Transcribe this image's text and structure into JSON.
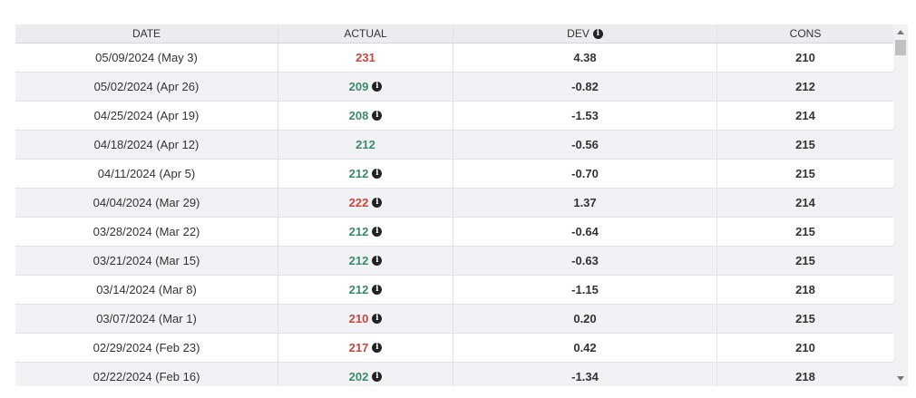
{
  "table": {
    "headers": [
      "DATE",
      "ACTUAL",
      "DEV",
      "CONS"
    ],
    "rows": [
      {
        "date": "05/09/2024 (May 3)",
        "actual": "231",
        "actual_color": "#c9463d",
        "info": false,
        "dev": "4.38",
        "cons": "210"
      },
      {
        "date": "05/02/2024 (Apr 26)",
        "actual": "209",
        "actual_color": "#3d8a6b",
        "info": true,
        "dev": "-0.82",
        "cons": "212"
      },
      {
        "date": "04/25/2024 (Apr 19)",
        "actual": "208",
        "actual_color": "#3d8a6b",
        "info": true,
        "dev": "-1.53",
        "cons": "214"
      },
      {
        "date": "04/18/2024 (Apr 12)",
        "actual": "212",
        "actual_color": "#3d8a6b",
        "info": false,
        "dev": "-0.56",
        "cons": "215"
      },
      {
        "date": "04/11/2024 (Apr 5)",
        "actual": "212",
        "actual_color": "#3d8a6b",
        "info": true,
        "dev": "-0.70",
        "cons": "215"
      },
      {
        "date": "04/04/2024 (Mar 29)",
        "actual": "222",
        "actual_color": "#c9463d",
        "info": true,
        "dev": "1.37",
        "cons": "214"
      },
      {
        "date": "03/28/2024 (Mar 22)",
        "actual": "212",
        "actual_color": "#3d8a6b",
        "info": true,
        "dev": "-0.64",
        "cons": "215"
      },
      {
        "date": "03/21/2024 (Mar 15)",
        "actual": "212",
        "actual_color": "#3d8a6b",
        "info": true,
        "dev": "-0.63",
        "cons": "215"
      },
      {
        "date": "03/14/2024 (Mar 8)",
        "actual": "212",
        "actual_color": "#3d8a6b",
        "info": true,
        "dev": "-1.15",
        "cons": "218"
      },
      {
        "date": "03/07/2024 (Mar 1)",
        "actual": "210",
        "actual_color": "#c9463d",
        "info": true,
        "dev": "0.20",
        "cons": "215"
      },
      {
        "date": "02/29/2024 (Feb 23)",
        "actual": "217",
        "actual_color": "#c9463d",
        "info": true,
        "dev": "0.42",
        "cons": "210"
      },
      {
        "date": "02/22/2024 (Feb 16)",
        "actual": "202",
        "actual_color": "#3d8a6b",
        "info": true,
        "dev": "-1.34",
        "cons": "218"
      }
    ]
  }
}
